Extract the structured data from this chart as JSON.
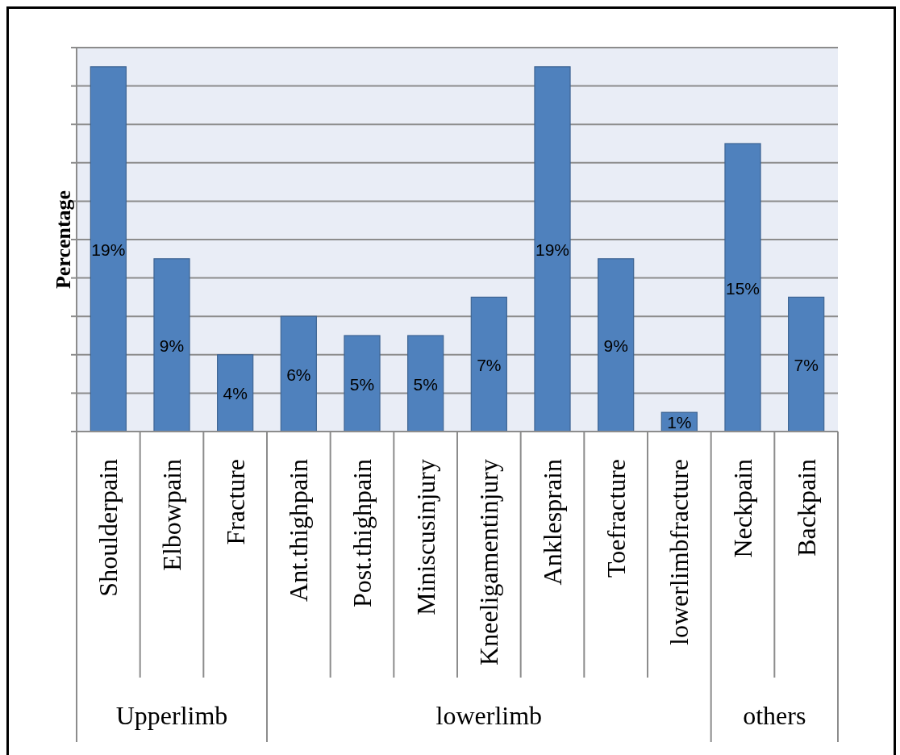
{
  "chart_data": {
    "type": "bar",
    "ylabel": "Percentage",
    "categories": [
      "Shoulderpain",
      "Elbowpain",
      "Fracture",
      "Ant.thighpain",
      "Post.thighpain",
      "Miniscusinjury",
      "Kneeligamentinjury",
      "Anklesprain",
      "Toefracture",
      "lowerlimbfracture",
      "Neckpain",
      "Backpain"
    ],
    "values": [
      19,
      9,
      4,
      6,
      5,
      5,
      7,
      19,
      9,
      1,
      15,
      7
    ],
    "value_labels": [
      "19%",
      "9%",
      "4%",
      "6%",
      "5%",
      "5%",
      "7%",
      "19%",
      "9%",
      "1%",
      "15%",
      "7%"
    ],
    "color": "#4f81bd",
    "ylim": [
      0,
      20
    ],
    "yticks": [
      {
        "value": 0,
        "label": null
      },
      {
        "value": 2,
        "label": null
      },
      {
        "value": 4,
        "label": null
      },
      {
        "value": 6,
        "label": null
      },
      {
        "value": 8,
        "label": null
      },
      {
        "value": 10,
        "label": null
      },
      {
        "value": 12,
        "label": null
      },
      {
        "value": 14,
        "label": null
      },
      {
        "value": 16,
        "label": null
      },
      {
        "value": 18,
        "label": null
      },
      {
        "value": 20,
        "label": null
      }
    ],
    "grid": "y",
    "tick_labels": "x",
    "annotations": [
      "Upperlimb",
      "lowerlimb",
      "others"
    ]
  }
}
